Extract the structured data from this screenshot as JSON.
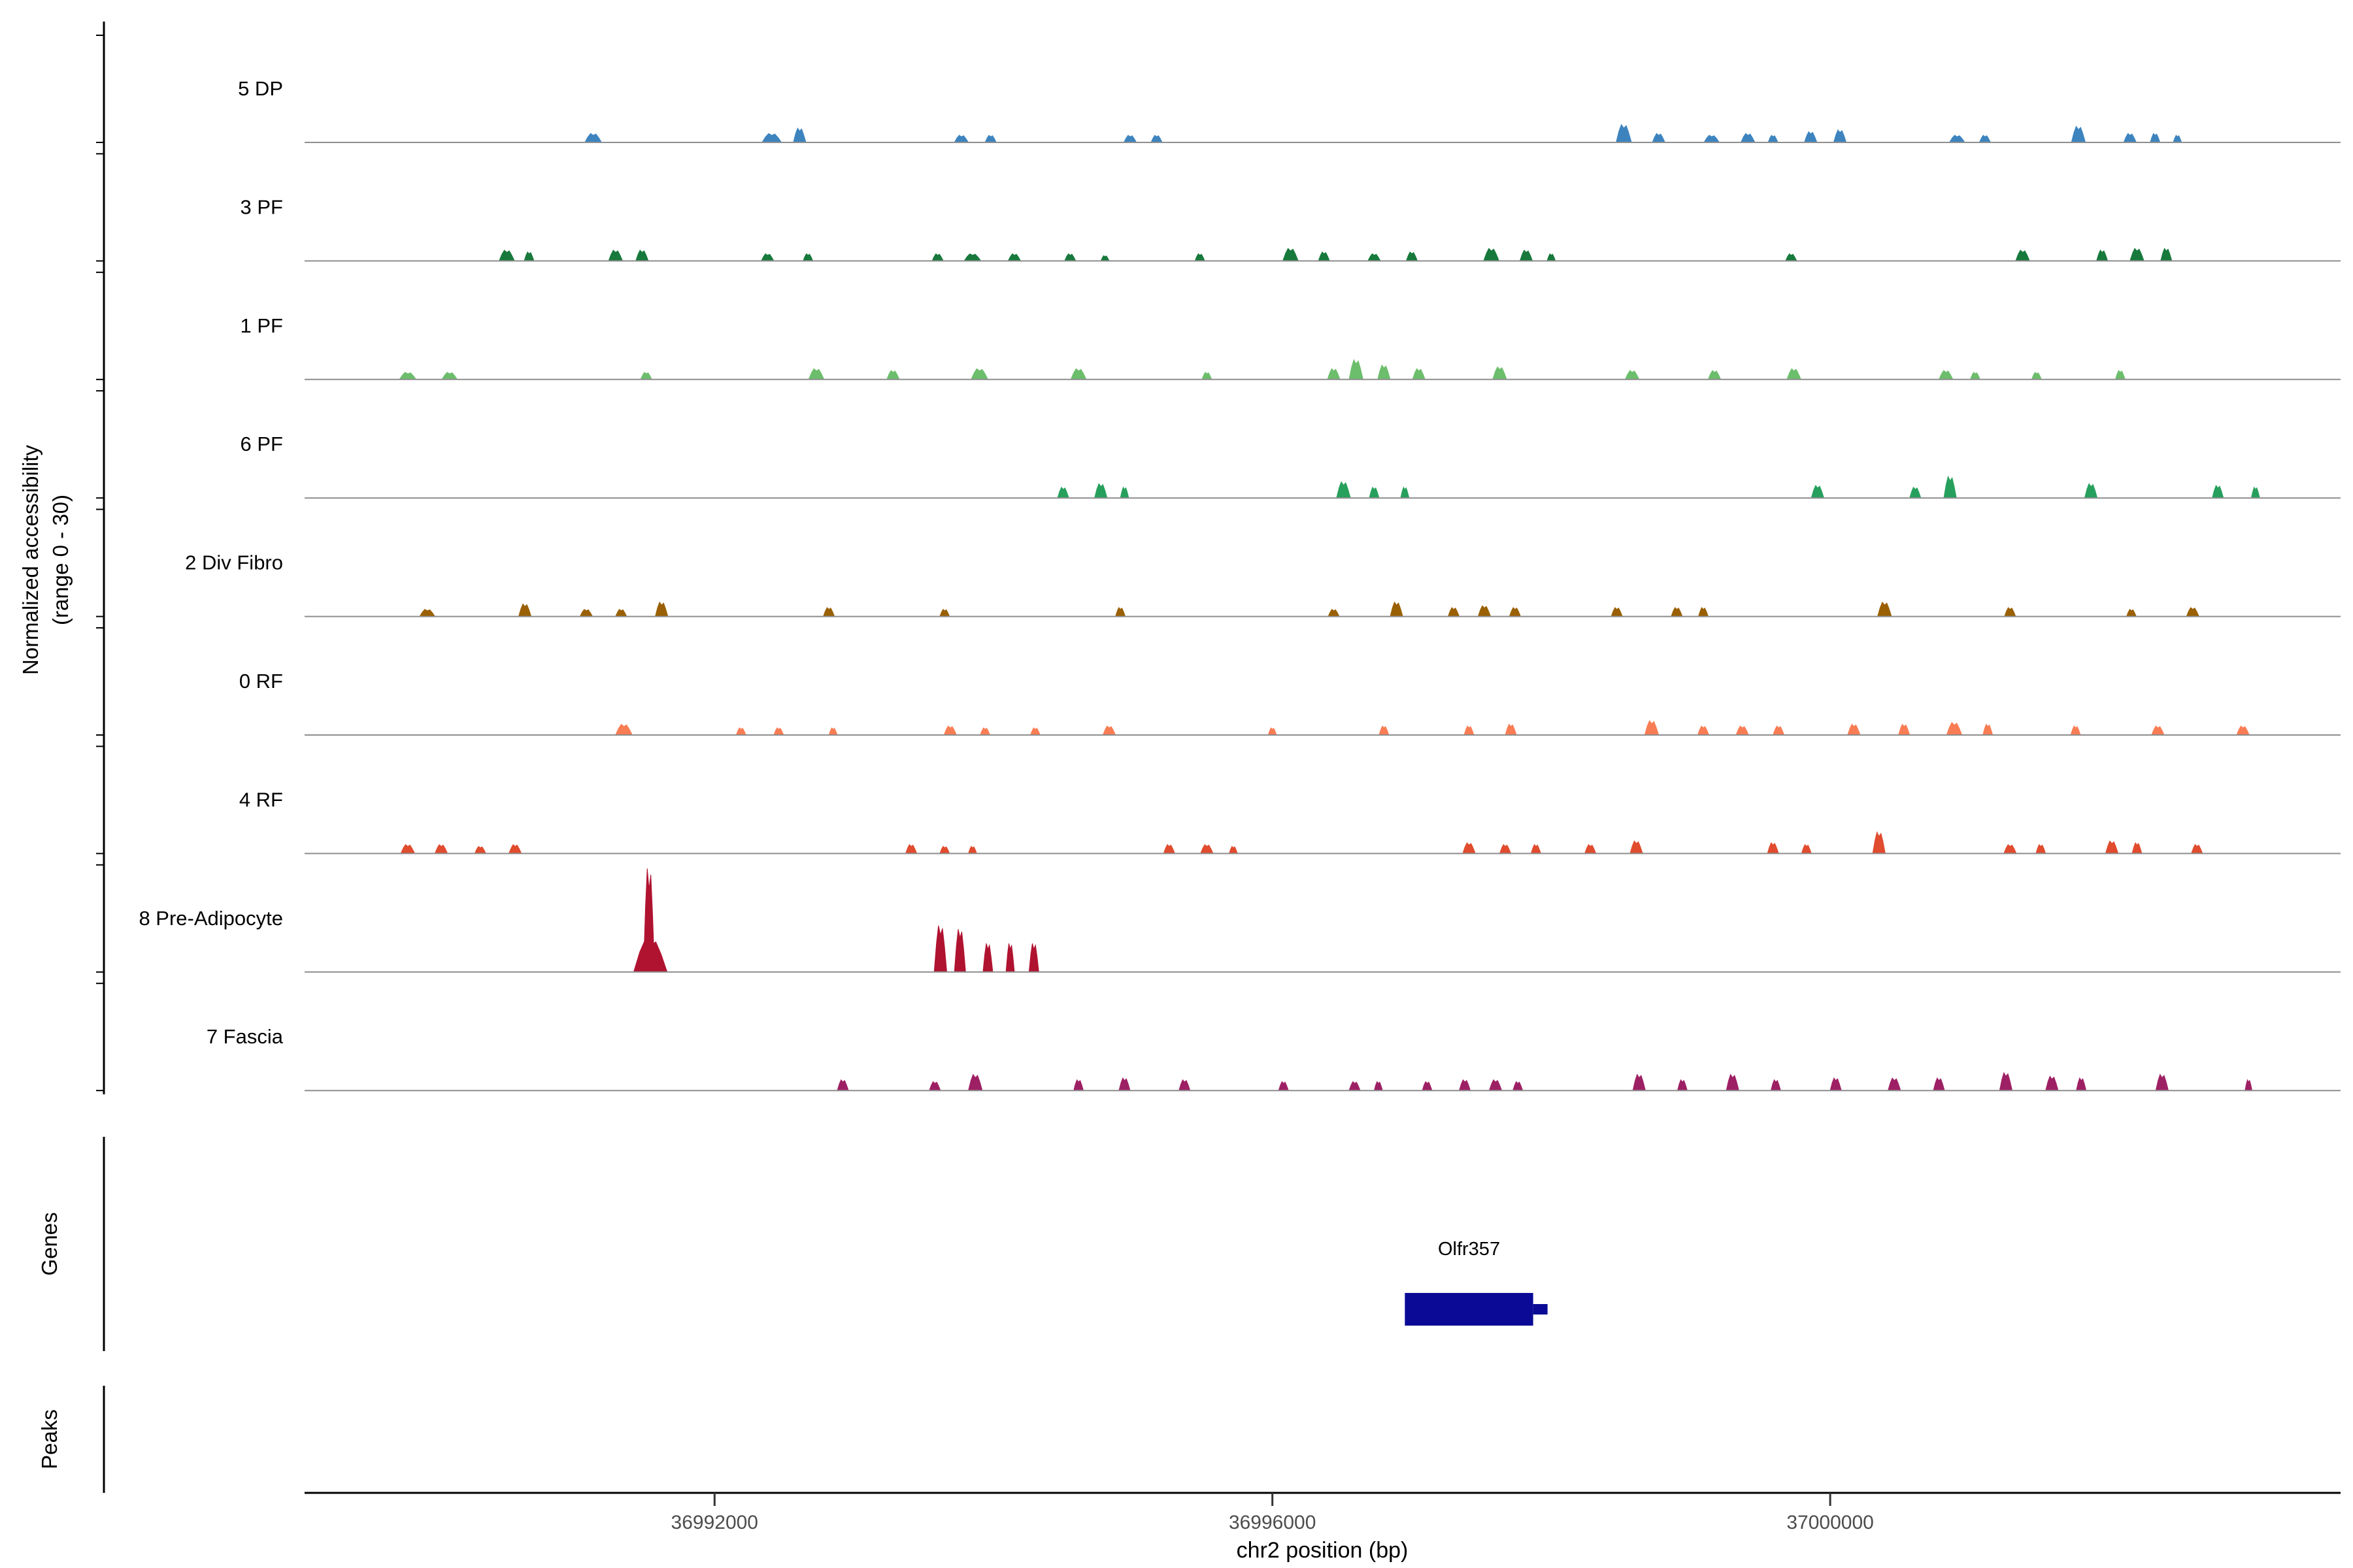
{
  "figure": {
    "y_axis_title_line1": "Normalized accessibility",
    "y_axis_title_line2": "(range 0 - 30)",
    "x_axis_title": "chr2 position (bp)",
    "genes_label": "Genes",
    "peaks_label": "Peaks"
  },
  "chart_data": {
    "type": "area",
    "description": "Genome-browser style normalized chromatin accessibility coverage tracks per cell cluster along chr2, with gene and peaks annotation panels",
    "x_domain": [
      36989060,
      37003660
    ],
    "x_ticks": [
      36992000,
      36996000,
      37000000
    ],
    "y_range_per_track": [
      0,
      30
    ],
    "baseline_color": "#8e8e8e",
    "tracks": [
      {
        "label": "5 DP",
        "color": "#3d84bf",
        "peaks": [
          [
            36991130,
            120,
            2.5
          ],
          [
            36992410,
            140,
            2.5
          ],
          [
            36992610,
            90,
            4
          ],
          [
            36993770,
            100,
            2
          ],
          [
            36993980,
            80,
            2
          ],
          [
            36994980,
            90,
            2
          ],
          [
            36995170,
            80,
            2
          ],
          [
            36998520,
            110,
            5
          ],
          [
            36998770,
            90,
            2.5
          ],
          [
            36999150,
            110,
            2
          ],
          [
            36999410,
            100,
            2.5
          ],
          [
            36999590,
            70,
            2
          ],
          [
            36999860,
            90,
            3
          ],
          [
            37000070,
            90,
            3.5
          ],
          [
            37000910,
            110,
            2
          ],
          [
            37001110,
            80,
            2
          ],
          [
            37001780,
            100,
            4.5
          ],
          [
            37002150,
            90,
            2.5
          ],
          [
            37002330,
            70,
            2.5
          ],
          [
            37002490,
            60,
            2
          ]
        ]
      },
      {
        "label": "3 PF",
        "color": "#17793c",
        "peaks": [
          [
            36990510,
            110,
            3
          ],
          [
            36990670,
            70,
            2.5
          ],
          [
            36991290,
            100,
            3
          ],
          [
            36991480,
            90,
            3
          ],
          [
            36992380,
            90,
            2
          ],
          [
            36992670,
            70,
            2
          ],
          [
            36993600,
            80,
            2
          ],
          [
            36993850,
            120,
            2
          ],
          [
            36994150,
            90,
            2
          ],
          [
            36994550,
            80,
            2
          ],
          [
            36994800,
            60,
            1.5
          ],
          [
            36995480,
            70,
            2
          ],
          [
            36996130,
            110,
            3.5
          ],
          [
            36996370,
            80,
            2.5
          ],
          [
            36996730,
            90,
            2
          ],
          [
            36997000,
            80,
            2.5
          ],
          [
            36997570,
            110,
            3.5
          ],
          [
            36997820,
            90,
            3
          ],
          [
            36998000,
            60,
            2
          ],
          [
            36999720,
            80,
            2
          ],
          [
            37001380,
            100,
            3
          ],
          [
            37001950,
            80,
            3
          ],
          [
            37002200,
            100,
            3.5
          ],
          [
            37002410,
            80,
            3.5
          ]
        ]
      },
      {
        "label": "1 PF",
        "color": "#6cbe6c",
        "peaks": [
          [
            36989800,
            120,
            2
          ],
          [
            36990100,
            110,
            2
          ],
          [
            36991510,
            80,
            2
          ],
          [
            36992730,
            110,
            3
          ],
          [
            36993280,
            90,
            2.5
          ],
          [
            36993900,
            120,
            3
          ],
          [
            36994610,
            110,
            3
          ],
          [
            36995530,
            70,
            2
          ],
          [
            36996440,
            90,
            3
          ],
          [
            36996600,
            100,
            5.5
          ],
          [
            36996800,
            90,
            4
          ],
          [
            36997050,
            90,
            3
          ],
          [
            36997630,
            100,
            3.5
          ],
          [
            36998580,
            100,
            2.5
          ],
          [
            36999170,
            90,
            2.5
          ],
          [
            36999740,
            100,
            3
          ],
          [
            37000830,
            100,
            2.5
          ],
          [
            37001040,
            70,
            2
          ],
          [
            37001480,
            70,
            2
          ],
          [
            37002080,
            70,
            2.5
          ]
        ]
      },
      {
        "label": "6 PF",
        "color": "#27a05d",
        "peaks": [
          [
            36994500,
            80,
            3
          ],
          [
            36994770,
            90,
            4
          ],
          [
            36994940,
            60,
            3
          ],
          [
            36996510,
            100,
            4.5
          ],
          [
            36996730,
            70,
            3
          ],
          [
            36996950,
            60,
            3
          ],
          [
            36999910,
            90,
            3.5
          ],
          [
            37000610,
            80,
            3
          ],
          [
            37000860,
            90,
            6
          ],
          [
            37001870,
            90,
            4
          ],
          [
            37002780,
            80,
            3.5
          ],
          [
            37003050,
            60,
            3
          ]
        ]
      },
      {
        "label": "2 Div Fibro",
        "color": "#9a6003",
        "peaks": [
          [
            36989940,
            110,
            2
          ],
          [
            36990640,
            90,
            3.5
          ],
          [
            36991080,
            90,
            2
          ],
          [
            36991330,
            80,
            2
          ],
          [
            36991620,
            90,
            4
          ],
          [
            36992820,
            80,
            2.5
          ],
          [
            36993650,
            70,
            2
          ],
          [
            36994910,
            70,
            2.5
          ],
          [
            36996440,
            80,
            2
          ],
          [
            36996890,
            90,
            4
          ],
          [
            36997300,
            80,
            2.5
          ],
          [
            36997520,
            90,
            3
          ],
          [
            36997740,
            80,
            2.5
          ],
          [
            36998470,
            80,
            2.5
          ],
          [
            36998900,
            80,
            2.5
          ],
          [
            36999090,
            70,
            2.5
          ],
          [
            37000390,
            100,
            4
          ],
          [
            37001290,
            80,
            2.5
          ],
          [
            37002160,
            70,
            2
          ],
          [
            37002600,
            90,
            2.5
          ]
        ]
      },
      {
        "label": "0 RF",
        "color": "#f97d54",
        "peaks": [
          [
            36991350,
            120,
            3
          ],
          [
            36992190,
            70,
            2
          ],
          [
            36992460,
            70,
            2
          ],
          [
            36992850,
            60,
            2
          ],
          [
            36993690,
            90,
            2.5
          ],
          [
            36993940,
            70,
            2
          ],
          [
            36994300,
            70,
            2
          ],
          [
            36994830,
            90,
            2.5
          ],
          [
            36996000,
            60,
            2
          ],
          [
            36996800,
            70,
            2.5
          ],
          [
            36997410,
            70,
            2.5
          ],
          [
            36997710,
            80,
            3
          ],
          [
            36998720,
            100,
            4
          ],
          [
            36999090,
            80,
            2.5
          ],
          [
            36999370,
            90,
            2.5
          ],
          [
            36999630,
            80,
            2.5
          ],
          [
            37000170,
            90,
            3
          ],
          [
            37000530,
            80,
            3
          ],
          [
            37000890,
            110,
            3.5
          ],
          [
            37001130,
            70,
            3
          ],
          [
            37001760,
            70,
            2.5
          ],
          [
            37002350,
            90,
            2.5
          ],
          [
            37002960,
            90,
            2.5
          ]
        ]
      },
      {
        "label": "4 RF",
        "color": "#e14b2e",
        "peaks": [
          [
            36989800,
            100,
            2.5
          ],
          [
            36990040,
            90,
            2.5
          ],
          [
            36990320,
            80,
            2
          ],
          [
            36990570,
            90,
            2.5
          ],
          [
            36993410,
            80,
            2.5
          ],
          [
            36993650,
            70,
            2
          ],
          [
            36993850,
            60,
            2
          ],
          [
            36995260,
            80,
            2.5
          ],
          [
            36995530,
            90,
            2.5
          ],
          [
            36995720,
            60,
            2
          ],
          [
            36997410,
            90,
            3
          ],
          [
            36997670,
            80,
            2.5
          ],
          [
            36997890,
            70,
            2.5
          ],
          [
            36998280,
            80,
            2.5
          ],
          [
            36998610,
            90,
            3.5
          ],
          [
            36999590,
            80,
            3
          ],
          [
            36999830,
            70,
            2.5
          ],
          [
            37000350,
            90,
            6
          ],
          [
            37001290,
            90,
            2.5
          ],
          [
            37001510,
            70,
            2.5
          ],
          [
            37002020,
            90,
            3.5
          ],
          [
            37002200,
            70,
            3
          ],
          [
            37002630,
            80,
            2.5
          ]
        ]
      },
      {
        "label": "8 Pre-Adipocyte",
        "color": "#b01330",
        "peaks": [
          [
            36991540,
            240,
            9
          ],
          [
            36991530,
            80,
            29
          ],
          [
            36993620,
            90,
            13
          ],
          [
            36993760,
            80,
            12
          ],
          [
            36993960,
            70,
            8
          ],
          [
            36994120,
            60,
            8
          ],
          [
            36994290,
            70,
            8
          ]
        ]
      },
      {
        "label": "7 Fascia",
        "color": "#9e2064",
        "peaks": [
          [
            36992920,
            80,
            3
          ],
          [
            36993580,
            80,
            2.5
          ],
          [
            36993870,
            100,
            4.5
          ],
          [
            36994610,
            70,
            3
          ],
          [
            36994940,
            80,
            3.5
          ],
          [
            36995370,
            80,
            3
          ],
          [
            36996080,
            70,
            2.5
          ],
          [
            36996590,
            80,
            2.5
          ],
          [
            36996760,
            60,
            2.5
          ],
          [
            36997110,
            70,
            2.5
          ],
          [
            36997380,
            80,
            3
          ],
          [
            36997600,
            90,
            3
          ],
          [
            36997760,
            70,
            2.5
          ],
          [
            36998630,
            90,
            4.5
          ],
          [
            36998940,
            70,
            3
          ],
          [
            36999300,
            90,
            4.5
          ],
          [
            36999610,
            70,
            3
          ],
          [
            37000040,
            80,
            3.5
          ],
          [
            37000460,
            90,
            3.5
          ],
          [
            37000780,
            80,
            3.5
          ],
          [
            37001260,
            90,
            5
          ],
          [
            37001590,
            90,
            4
          ],
          [
            37001800,
            70,
            3.5
          ],
          [
            37002380,
            90,
            4.5
          ],
          [
            37003000,
            50,
            3
          ]
        ]
      }
    ],
    "gene": {
      "name": "Olfr357",
      "start": 36996950,
      "end": 36997870,
      "color": "#0a0a96"
    },
    "peaks_track": []
  }
}
